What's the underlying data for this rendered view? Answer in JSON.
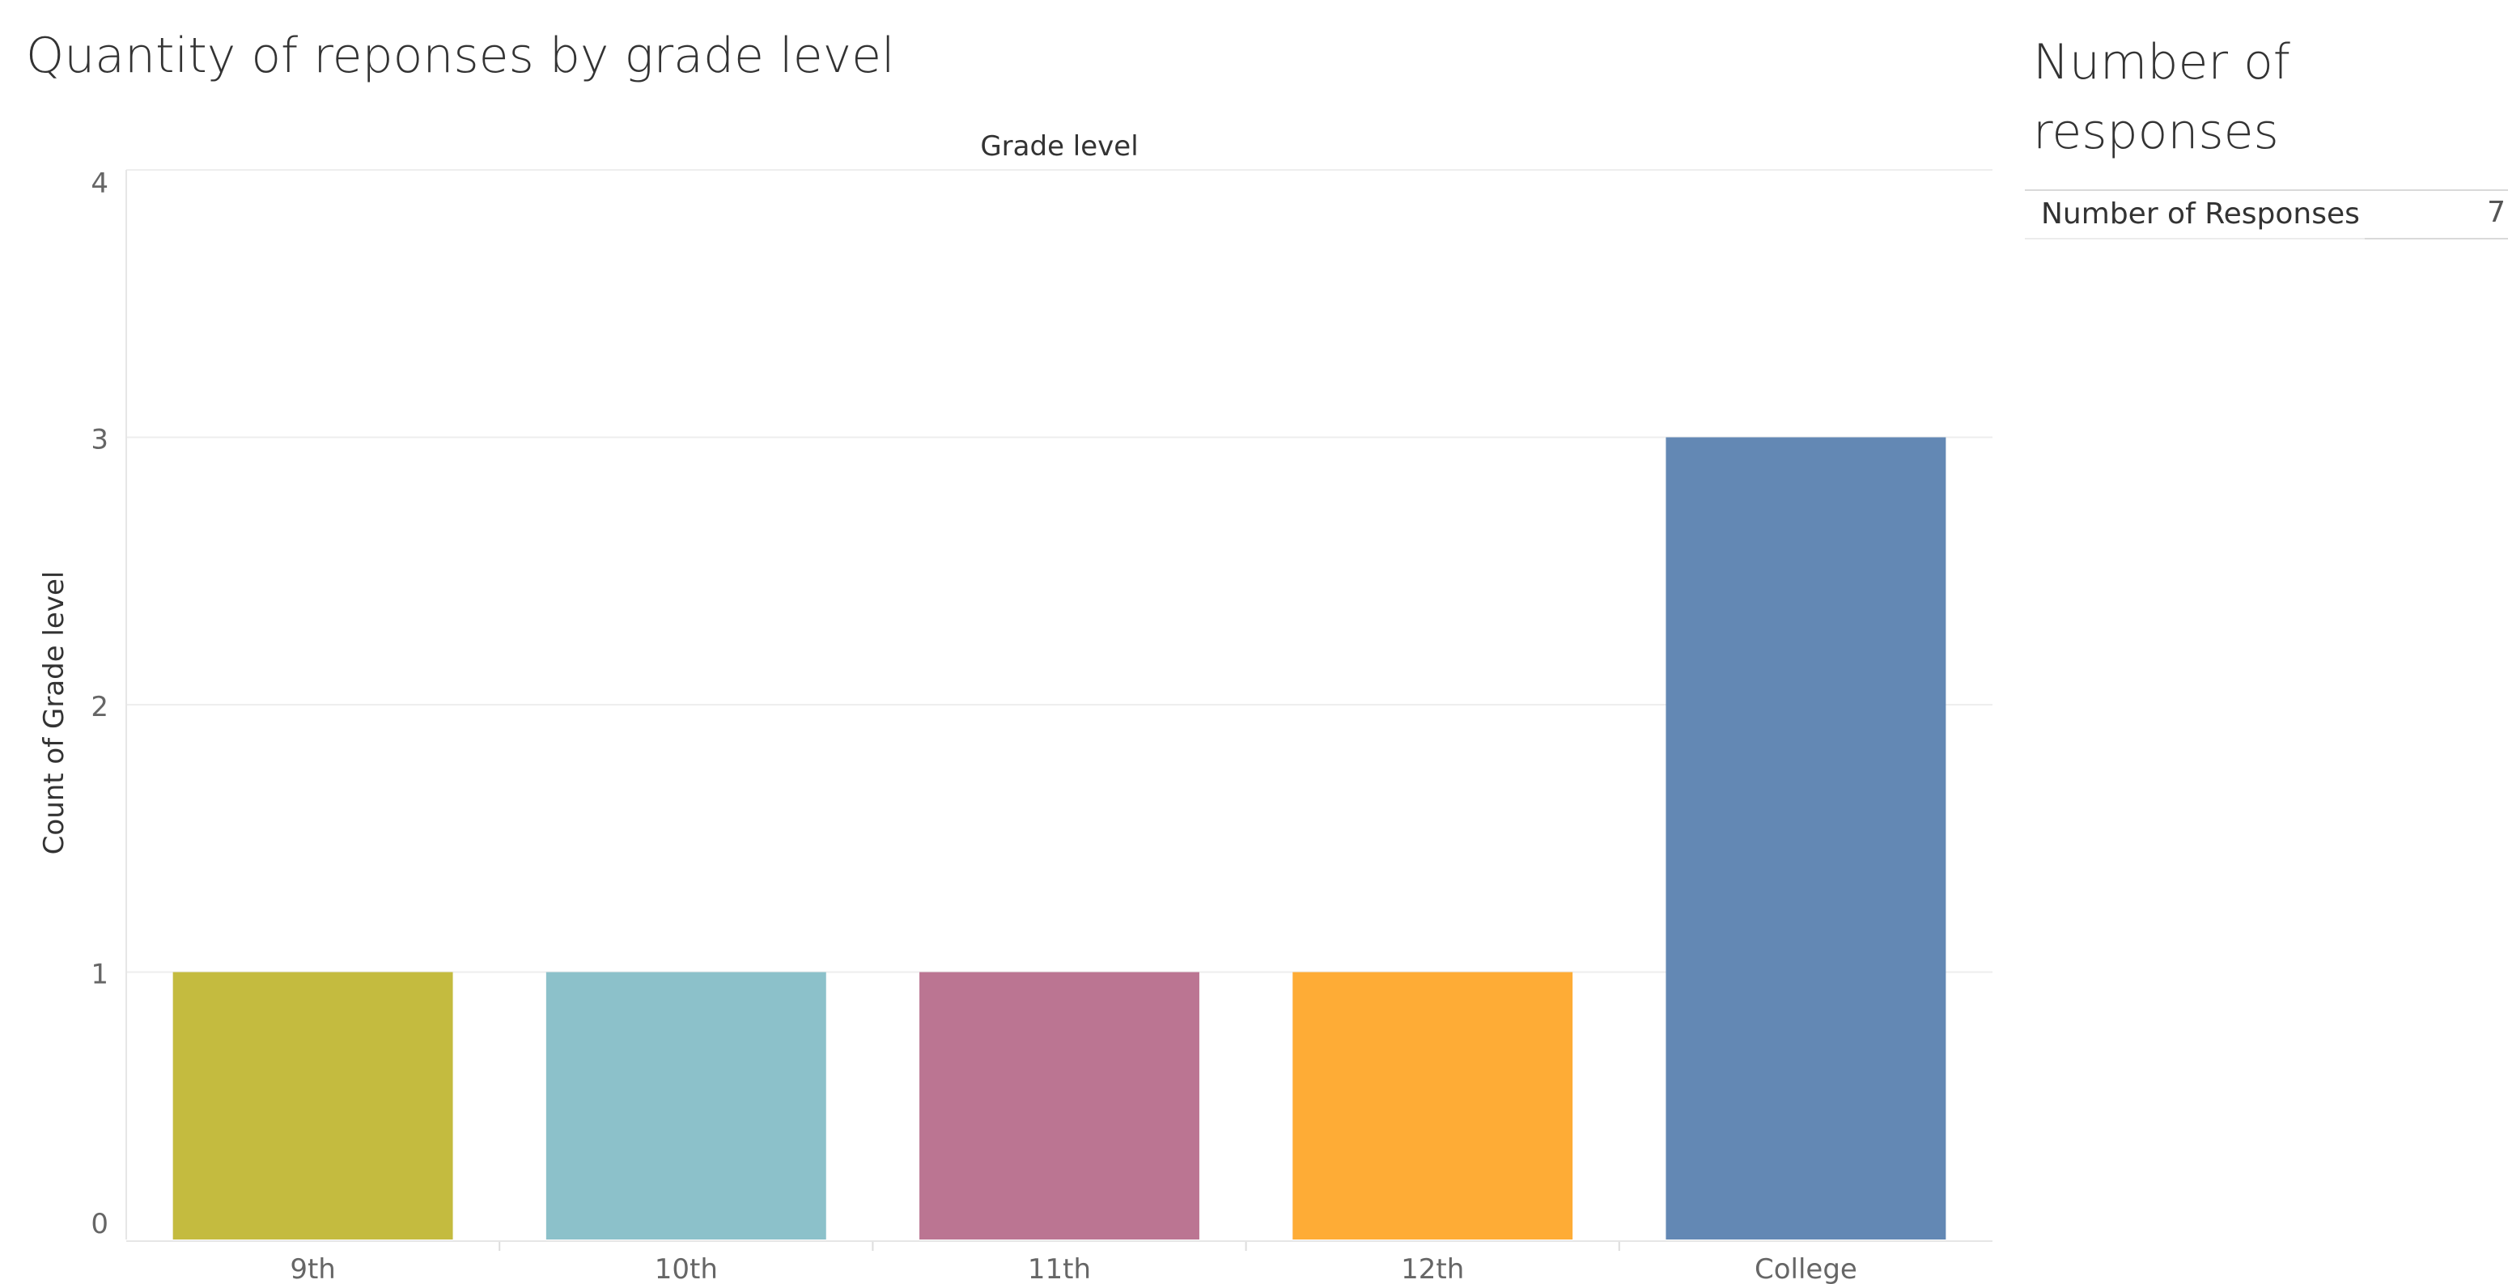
{
  "title": "Quantity of reponses by grade level",
  "side_panel": {
    "title": "Number of responses",
    "row_label": "Number of Responses",
    "row_value": "7"
  },
  "colors": {
    "9th": "#c4bb3f",
    "10th": "#8cc1ca",
    "11th": "#bb7592",
    "12th": "#feac36",
    "College": "#6388b4",
    "gridline": "#eeeeee",
    "axis_text": "#666666"
  },
  "chart_data": {
    "type": "bar",
    "title": "Quantity of reponses by grade level",
    "xlabel": "Grade level",
    "ylabel": "Count of Grade level",
    "categories": [
      "9th",
      "10th",
      "11th",
      "12th",
      "College"
    ],
    "values": [
      1,
      1,
      1,
      1,
      3
    ],
    "ylim": [
      0,
      4
    ],
    "yticks": [
      0,
      1,
      2,
      3,
      4
    ],
    "grid": true
  }
}
